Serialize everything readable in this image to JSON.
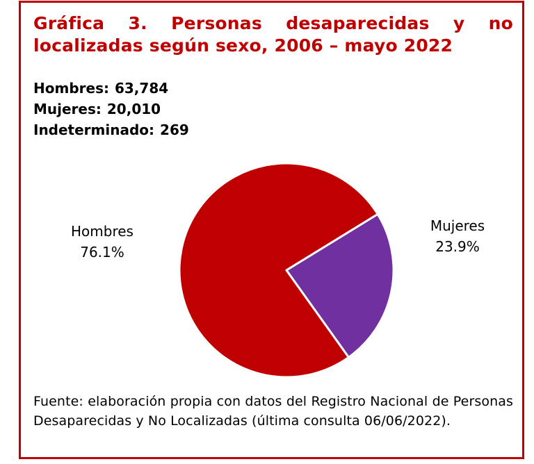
{
  "title": "Gráfica 3. Personas desaparecidas y no localizadas según sexo, 2006 – mayo 2022",
  "stats": [
    {
      "label": "Hombres:",
      "value": "63,784"
    },
    {
      "label": "Mujeres:",
      "value": "20,010"
    },
    {
      "label": "Indeterminado:",
      "value": "269"
    }
  ],
  "chart_data": {
    "type": "pie",
    "slices": [
      {
        "label": "Hombres",
        "percent_label": "76.1%",
        "value": 76.1,
        "color": "#c00000"
      },
      {
        "label": "Mujeres",
        "percent_label": "23.9%",
        "value": 23.9,
        "color": "#7030a0"
      }
    ],
    "slice_border_color": "#ffffff",
    "legend": "none"
  },
  "source": "Fuente: elaboración propia con datos del Registro Nacional de Personas Desaparecidas y No Localizadas (última consulta 06/06/2022)."
}
